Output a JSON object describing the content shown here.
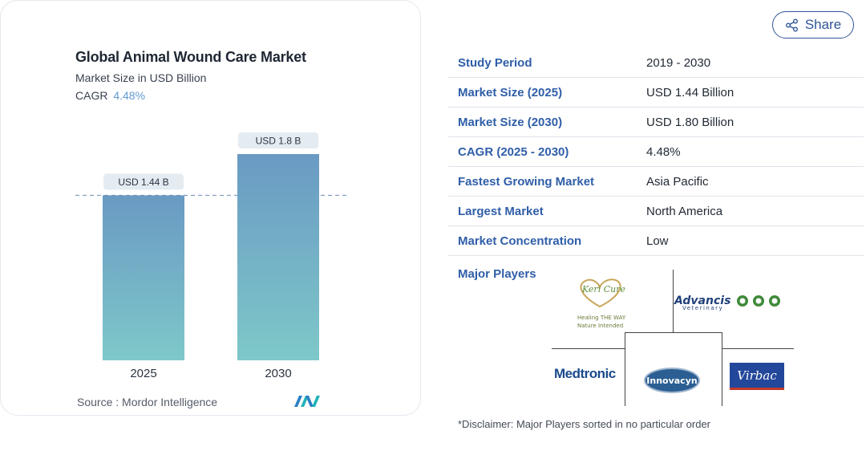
{
  "chart_data": {
    "type": "bar",
    "title": "Global Animal Wound Care Market",
    "subtitle": "Market Size in USD Billion",
    "cagr_label": "CAGR",
    "cagr_value": "4.48%",
    "categories": [
      "2025",
      "2030"
    ],
    "values": [
      1.44,
      1.8
    ],
    "data_labels": [
      "USD 1.44 B",
      "USD 1.8 B"
    ],
    "ylim": [
      0,
      1.8
    ],
    "reference_line": 1.44,
    "source": "Source :  Mordor Intelligence",
    "colors": {
      "bar_top": "#6a9ac3",
      "bar_bottom": "#7ec8c9",
      "label_bg": "#e4ecf2",
      "dash": "#6a90b8"
    }
  },
  "share": {
    "label": "Share",
    "icon": "share-icon"
  },
  "table": [
    {
      "key": "Study Period",
      "value": "2019 - 2030"
    },
    {
      "key": "Market Size (2025)",
      "value": "USD 1.44 Billion"
    },
    {
      "key": "Market Size (2030)",
      "value": "USD 1.80 Billion"
    },
    {
      "key": "CAGR (2025 - 2030)",
      "value": "4.48%"
    },
    {
      "key": "Fastest Growing Market",
      "value": "Asia Pacific"
    },
    {
      "key": "Largest Market",
      "value": "North America"
    },
    {
      "key": "Market Concentration",
      "value": "Low"
    }
  ],
  "major_players": {
    "label": "Major Players",
    "keri": {
      "brand": "Keri Cure",
      "line1": "Healing THE WAY",
      "line2": "Nature Intended"
    },
    "advancis": {
      "brand": "Advancis",
      "sub": "Veterinary"
    },
    "medtronic": "Medtronic",
    "innovacyn": "Innovacyn",
    "virbac": "Virbac"
  },
  "disclaimer": "*Disclaimer: Major Players sorted in no particular order"
}
